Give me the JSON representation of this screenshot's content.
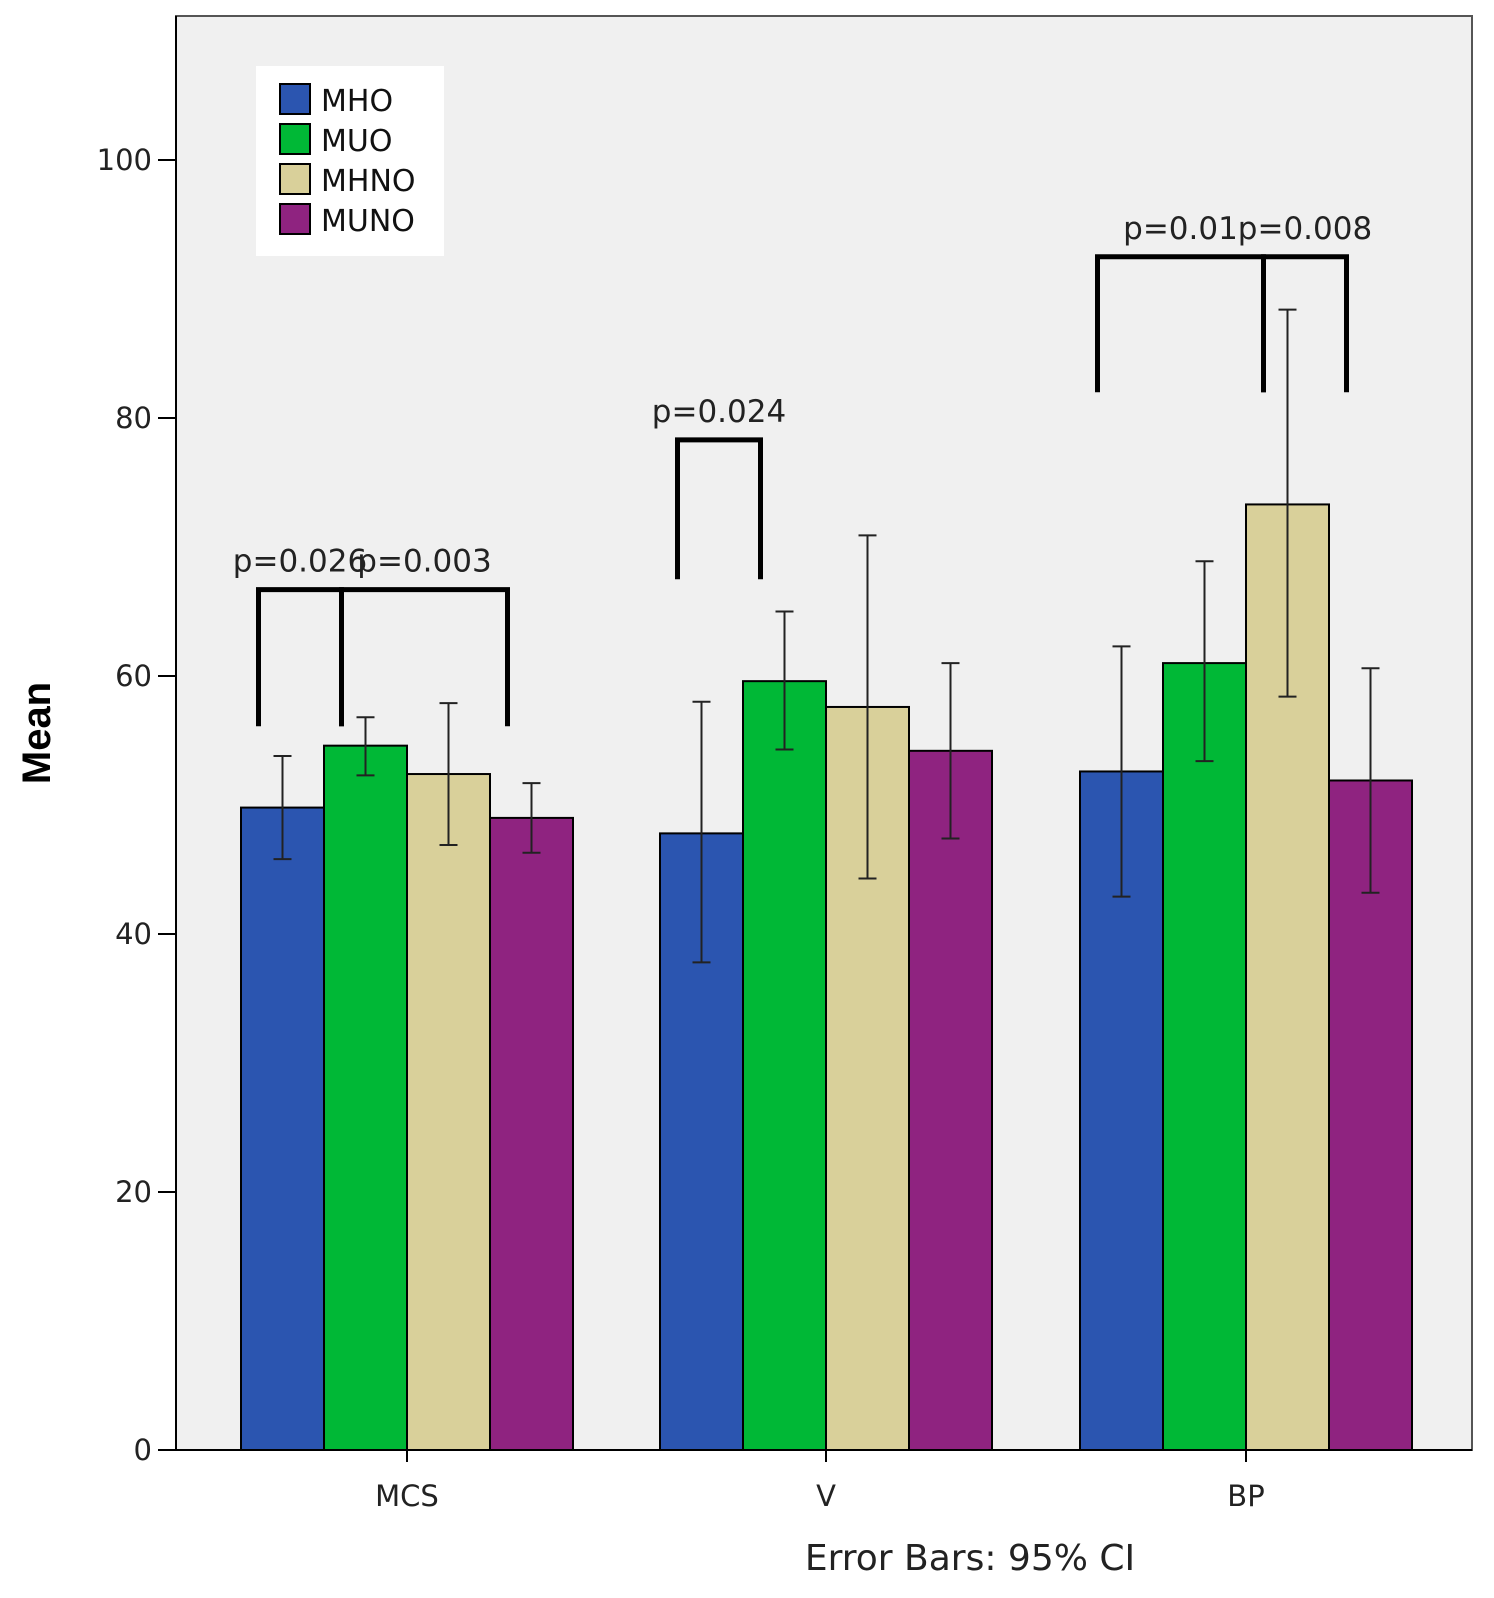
{
  "chart_data": {
    "type": "bar",
    "categories": [
      "MCS",
      "V",
      "BP"
    ],
    "series": [
      {
        "name": "MHO",
        "color": "#2b55b0",
        "values": [
          49.8,
          47.8,
          52.6
        ],
        "ci_low": [
          45.8,
          37.8,
          42.9
        ],
        "ci_high": [
          53.8,
          58.0,
          62.3
        ]
      },
      {
        "name": "MUO",
        "color": "#00b836",
        "values": [
          54.6,
          59.6,
          61.0
        ],
        "ci_low": [
          52.3,
          54.3,
          53.4
        ],
        "ci_high": [
          56.8,
          65.0,
          68.9
        ]
      },
      {
        "name": "MHNO",
        "color": "#d9d09a",
        "values": [
          52.4,
          57.6,
          73.3
        ],
        "ci_low": [
          46.9,
          44.3,
          58.4
        ],
        "ci_high": [
          57.9,
          70.9,
          88.4
        ]
      },
      {
        "name": "MUNO",
        "color": "#8f2380",
        "values": [
          49.0,
          54.2,
          51.9
        ],
        "ci_low": [
          46.3,
          47.4,
          43.2
        ],
        "ci_high": [
          51.7,
          61.0,
          60.6
        ]
      }
    ],
    "ylabel": "Mean",
    "xlabel": "",
    "ylim": [
      0,
      111
    ],
    "yticks": [
      0,
      20,
      40,
      60,
      80,
      100
    ],
    "grid": false,
    "legend_position": "top-left",
    "background_color": "#f0f0f0",
    "note": "Error Bars: 95% CI",
    "significance": [
      {
        "label": "p=0.026",
        "category": 0,
        "from_series": 0,
        "to_series": 1,
        "bracket_y": 66.7,
        "leg_low": 56.1
      },
      {
        "label": "p=0.003",
        "category": 0,
        "from_series": 1,
        "to_series": 3,
        "bracket_y": 66.7,
        "leg_low": 56.1
      },
      {
        "label": "p=0.024",
        "category": 1,
        "from_series": 0,
        "to_series": 1,
        "bracket_y": 78.3,
        "leg_low": 67.5
      },
      {
        "label": "p=0.01",
        "category": 2,
        "from_series": 0,
        "to_series": 2,
        "bracket_y": 92.5,
        "leg_low": 82.0
      },
      {
        "label": "p=0.008",
        "category": 2,
        "from_series": 2,
        "to_series": 3,
        "bracket_y": 92.5,
        "leg_low": 82.0
      }
    ]
  }
}
